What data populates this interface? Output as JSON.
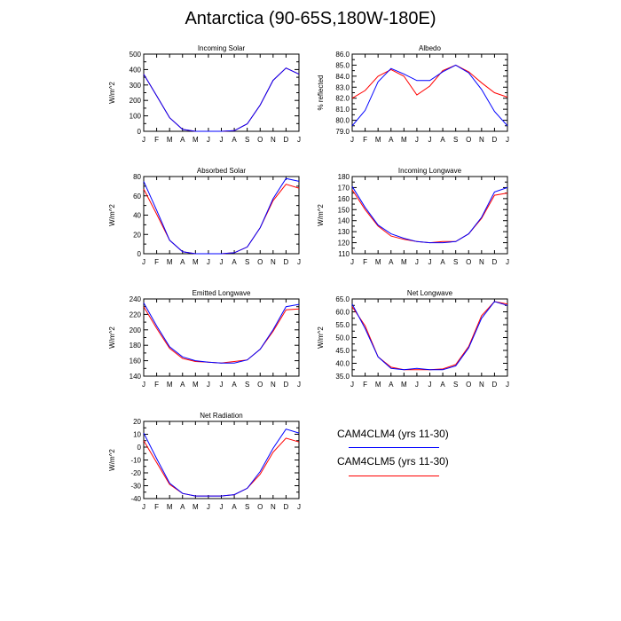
{
  "title": "Antarctica (90-65S,180W-180E)",
  "colors": {
    "CAM4CLM4": "#0000ff",
    "CAM4CLM5": "#ff0000"
  },
  "legend": [
    {
      "label": "CAM4CLM4 (yrs 11-30)",
      "color": "#0000ff"
    },
    {
      "label": "CAM4CLM5 (yrs 11-30)",
      "color": "#ff0000"
    }
  ],
  "chart_data": [
    {
      "type": "line",
      "title": "Incoming Solar",
      "ylabel": "W/m^2",
      "categories": [
        "J",
        "F",
        "M",
        "A",
        "M",
        "J",
        "J",
        "A",
        "S",
        "O",
        "N",
        "D",
        "J"
      ],
      "ylim": [
        0,
        500
      ],
      "yticks": [
        "0",
        "100",
        "200",
        "300",
        "400",
        "500"
      ],
      "series": [
        {
          "name": "CAM4CLM4 (yrs 11-30)",
          "values": [
            370,
            230,
            88,
            12,
            0,
            0,
            0,
            4,
            48,
            170,
            330,
            410,
            370
          ]
        },
        {
          "name": "CAM4CLM5 (yrs 11-30)",
          "values": [
            370,
            230,
            88,
            12,
            0,
            0,
            0,
            4,
            48,
            170,
            330,
            410,
            370
          ]
        }
      ]
    },
    {
      "type": "line",
      "title": "Albedo",
      "ylabel": "% reflected",
      "categories": [
        "J",
        "F",
        "M",
        "A",
        "M",
        "J",
        "J",
        "A",
        "S",
        "O",
        "N",
        "D",
        "J"
      ],
      "ylim": [
        79.0,
        86.0
      ],
      "yticks": [
        "79.0",
        "80.0",
        "81.0",
        "82.0",
        "83.0",
        "84.0",
        "85.0",
        "86.0"
      ],
      "series": [
        {
          "name": "CAM4CLM4 (yrs 11-30)",
          "values": [
            79.5,
            80.9,
            83.5,
            84.7,
            84.2,
            83.6,
            83.6,
            84.4,
            85.0,
            84.3,
            82.8,
            80.8,
            79.5
          ]
        },
        {
          "name": "CAM4CLM5 (yrs 11-30)",
          "values": [
            82.0,
            82.7,
            84.0,
            84.6,
            84.0,
            82.3,
            83.1,
            84.5,
            85.0,
            84.4,
            83.4,
            82.5,
            82.1
          ]
        }
      ]
    },
    {
      "type": "line",
      "title": "Absorbed Solar",
      "ylabel": "W/m^2",
      "categories": [
        "J",
        "F",
        "M",
        "A",
        "M",
        "J",
        "J",
        "A",
        "S",
        "O",
        "N",
        "D",
        "J"
      ],
      "ylim": [
        0,
        80
      ],
      "yticks": [
        "0",
        "20",
        "40",
        "60",
        "80"
      ],
      "series": [
        {
          "name": "CAM4CLM4 (yrs 11-30)",
          "values": [
            75,
            45,
            14,
            2,
            0,
            0,
            0,
            1,
            7,
            27,
            57,
            78,
            75
          ]
        },
        {
          "name": "CAM4CLM5 (yrs 11-30)",
          "values": [
            67,
            41,
            14,
            2,
            0,
            0,
            0,
            1,
            7,
            27,
            55,
            72,
            68
          ]
        }
      ]
    },
    {
      "type": "line",
      "title": "Incoming Longwave",
      "ylabel": "W/m^2",
      "categories": [
        "J",
        "F",
        "M",
        "A",
        "M",
        "J",
        "J",
        "A",
        "S",
        "O",
        "N",
        "D",
        "J"
      ],
      "ylim": [
        110,
        180
      ],
      "yticks": [
        "110",
        "120",
        "130",
        "140",
        "150",
        "160",
        "170",
        "180"
      ],
      "series": [
        {
          "name": "CAM4CLM4 (yrs 11-30)",
          "values": [
            171,
            152,
            136,
            128,
            124,
            121,
            120,
            120,
            121,
            128,
            143,
            166,
            170
          ]
        },
        {
          "name": "CAM4CLM5 (yrs 11-30)",
          "values": [
            168,
            150,
            135,
            126,
            123,
            121,
            120,
            121,
            121,
            128,
            142,
            163,
            165
          ]
        }
      ]
    },
    {
      "type": "line",
      "title": "Emitted Longwave",
      "ylabel": "W/m^2",
      "categories": [
        "J",
        "F",
        "M",
        "A",
        "M",
        "J",
        "J",
        "A",
        "S",
        "O",
        "N",
        "D",
        "J"
      ],
      "ylim": [
        140,
        240
      ],
      "yticks": [
        "140",
        "160",
        "180",
        "200",
        "220",
        "240"
      ],
      "series": [
        {
          "name": "CAM4CLM4 (yrs 11-30)",
          "values": [
            235,
            205,
            178,
            165,
            160,
            158,
            157,
            157,
            161,
            175,
            200,
            230,
            233
          ]
        },
        {
          "name": "CAM4CLM5 (yrs 11-30)",
          "values": [
            230,
            202,
            176,
            163,
            159,
            158,
            157,
            159,
            161,
            175,
            198,
            226,
            227
          ]
        }
      ]
    },
    {
      "type": "line",
      "title": "Net Longwave",
      "ylabel": "W/m^2",
      "categories": [
        "J",
        "F",
        "M",
        "A",
        "M",
        "J",
        "J",
        "A",
        "S",
        "O",
        "N",
        "D",
        "J"
      ],
      "ylim": [
        35.0,
        65.0
      ],
      "yticks": [
        "35.0",
        "40.0",
        "45.0",
        "50.0",
        "55.0",
        "60.0",
        "65.0"
      ],
      "series": [
        {
          "name": "CAM4CLM4 (yrs 11-30)",
          "values": [
            63.0,
            53.5,
            42.5,
            38.0,
            37.5,
            38.0,
            37.5,
            37.5,
            39.0,
            46.0,
            57.5,
            64.0,
            62.5
          ]
        },
        {
          "name": "CAM4CLM5 (yrs 11-30)",
          "values": [
            62.0,
            54.5,
            42.5,
            38.5,
            37.5,
            37.5,
            37.5,
            37.8,
            39.5,
            46.5,
            58.5,
            64.0,
            63.0
          ]
        }
      ]
    },
    {
      "type": "line",
      "title": "Net Radiation",
      "ylabel": "W/m^2",
      "categories": [
        "J",
        "F",
        "M",
        "A",
        "M",
        "J",
        "J",
        "A",
        "S",
        "O",
        "N",
        "D",
        "J"
      ],
      "ylim": [
        -40,
        20
      ],
      "yticks": [
        "-40",
        "-30",
        "-20",
        "-10",
        "0",
        "10",
        "20"
      ],
      "series": [
        {
          "name": "CAM4CLM4 (yrs 11-30)",
          "values": [
            11,
            -9,
            -28,
            -36,
            -38,
            -38,
            -38,
            -37,
            -32,
            -19,
            -1,
            14,
            11
          ]
        },
        {
          "name": "CAM4CLM5 (yrs 11-30)",
          "values": [
            5,
            -12,
            -29,
            -36,
            -38,
            -38,
            -38,
            -37,
            -32,
            -21,
            -4,
            7,
            4
          ]
        }
      ]
    }
  ]
}
